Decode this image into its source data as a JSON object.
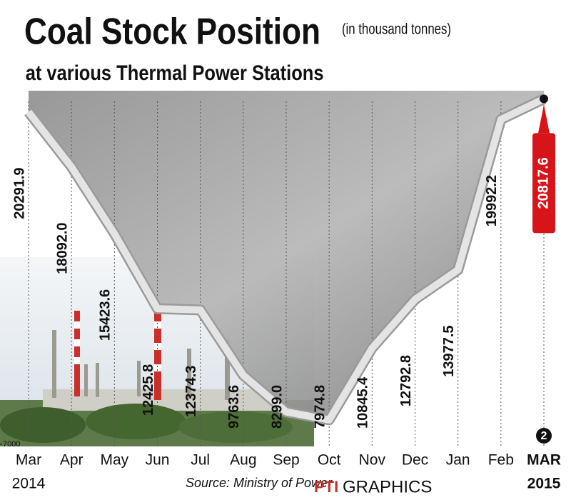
{
  "chart_data": {
    "type": "line",
    "title": "Coal Stock Position",
    "subtitle": "at various Thermal Power Stations",
    "unit_note": "(in thousand tonnes)",
    "categories": [
      "Mar",
      "Apr",
      "May",
      "Jun",
      "Jul",
      "Aug",
      "Sep",
      "Oct",
      "Nov",
      "Dec",
      "Jan",
      "Feb",
      "MAR"
    ],
    "start_year": "2014",
    "end_year": "2015",
    "values": [
      20291.9,
      18092.0,
      15423.6,
      12425.8,
      12374.3,
      9763.6,
      8299.0,
      7974.8,
      10845.4,
      12792.8,
      13977.5,
      19992.2,
      20817.6
    ],
    "value_labels": [
      "20291.9",
      "18092.0",
      "15423.6",
      "12425.8",
      "12374.3",
      "9763.6",
      "8299.0",
      "7974.8",
      "10845.4",
      "12792.8",
      "13977.5",
      "19992.2",
      "20817.6"
    ],
    "ylim": [
      7000,
      21000
    ],
    "yticks": [
      7000
    ],
    "color": "#e4e4e4",
    "highlight_color": "#d7141a",
    "badge": "2",
    "source": "Source: Ministry of Power",
    "brand": "PTI",
    "brand_suffix": "GRAPHICS"
  }
}
